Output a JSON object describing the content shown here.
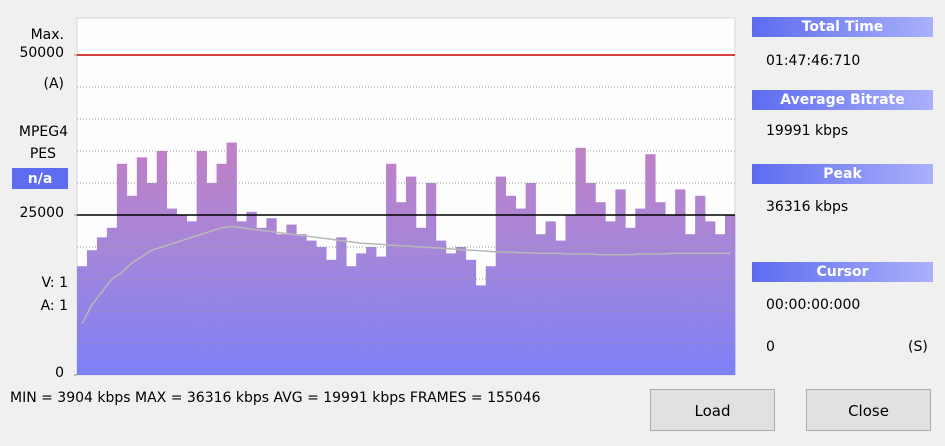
{
  "chart_data": {
    "type": "bar",
    "labels": {
      "max": "Max.",
      "unit": "(A)",
      "codec": "MPEG4",
      "stream": "PES",
      "status": "n/a",
      "video": "V: 1",
      "audio": "A: 1"
    },
    "ylim": [
      0,
      55000
    ],
    "yticks": [
      0,
      25000,
      50000
    ],
    "grid": [
      5000,
      10000,
      15000,
      20000,
      30000,
      35000,
      40000,
      45000
    ],
    "reference_lines": [
      {
        "value": 25000,
        "color": "#000000"
      },
      {
        "value": 50000,
        "color": "#cc0000"
      }
    ],
    "series": [
      {
        "kind": "bar",
        "color": "#8c84f0",
        "values": [
          17000,
          19500,
          21500,
          23000,
          33000,
          28000,
          34000,
          30000,
          35000,
          26000,
          25000,
          24000,
          35000,
          30000,
          33000,
          36316,
          24000,
          25500,
          23000,
          24500,
          22000,
          23500,
          22000,
          21000,
          20000,
          18000,
          21500,
          17000,
          19000,
          20000,
          18500,
          33000,
          27000,
          31000,
          23000,
          30000,
          21000,
          19000,
          20000,
          18000,
          14000,
          17000,
          31000,
          28000,
          26000,
          30000,
          22000,
          24000,
          21000,
          25000,
          35500,
          30000,
          27000,
          24000,
          29000,
          23000,
          26000,
          34500,
          27000,
          25000,
          29000,
          22000,
          28000,
          24000,
          22000,
          25000
        ]
      },
      {
        "kind": "line",
        "color": "#b8b8b8",
        "values": [
          8000,
          11000,
          13000,
          15000,
          16000,
          17500,
          18500,
          19500,
          20000,
          20500,
          21000,
          21500,
          22000,
          22500,
          23000,
          23200,
          23000,
          22800,
          22600,
          22400,
          22200,
          22000,
          21800,
          21600,
          21400,
          21200,
          21000,
          20800,
          20600,
          20500,
          20400,
          20300,
          20200,
          20100,
          20000,
          19900,
          19800,
          19700,
          19600,
          19500,
          19400,
          19300,
          19200,
          19200,
          19100,
          19100,
          19000,
          19000,
          19000,
          18900,
          18900,
          18900,
          18800,
          18800,
          18800,
          18800,
          18900,
          18900,
          18900,
          19000,
          19000,
          19000,
          19000,
          19000,
          19000,
          19000
        ]
      }
    ]
  },
  "side": {
    "total_time_label": "Total Time",
    "total_time": "01:47:46:710",
    "avg_label": "Average Bitrate",
    "avg": "19991 kbps",
    "peak_label": "Peak",
    "peak": "36316 kbps",
    "cursor_label": "Cursor",
    "cursor": "00:00:00:000",
    "cursor_pos": "0",
    "cursor_unit": "(S)"
  },
  "footer": {
    "stats": "MIN = 3904 kbps  MAX = 36316 kbps  AVG = 19991 kbps  FRAMES = 155046",
    "load": "Load",
    "close": "Close"
  }
}
